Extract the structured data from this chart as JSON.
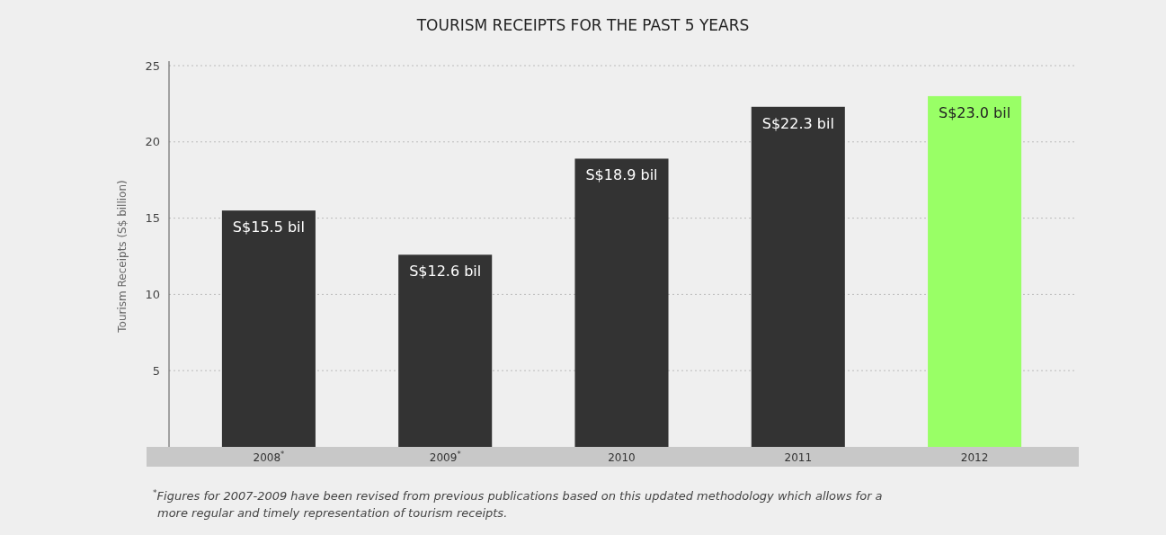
{
  "chart_data": {
    "type": "bar",
    "title": "TOURISM RECEIPTS FOR THE PAST 5 YEARS",
    "ylabel": "Tourism Receipts (S$ billion)",
    "categories": [
      "2008$^{*}$",
      "2009$^{*}$",
      "2010",
      "2011",
      "2012"
    ],
    "values": [
      15.5,
      12.6,
      18.9,
      22.3,
      23.0
    ],
    "colors": [
      "#333333",
      "#333333",
      "#333333",
      "#333333",
      "#99ff66"
    ],
    "value_labels": [
      "S$15.5 bil",
      "S$12.6 bil",
      "S$18.9 bil",
      "S$22.3 bil",
      "S$23.0 bil"
    ],
    "ylim": [
      0,
      25
    ],
    "yticks": [
      5,
      10,
      15,
      20,
      25
    ],
    "grid": "y",
    "annotations": [
      "$^{*}$Figures for 2007-2009 have been revised from previous publications based on this updated methodology which allows for a more regular and timely representation of tourism receipts."
    ]
  }
}
